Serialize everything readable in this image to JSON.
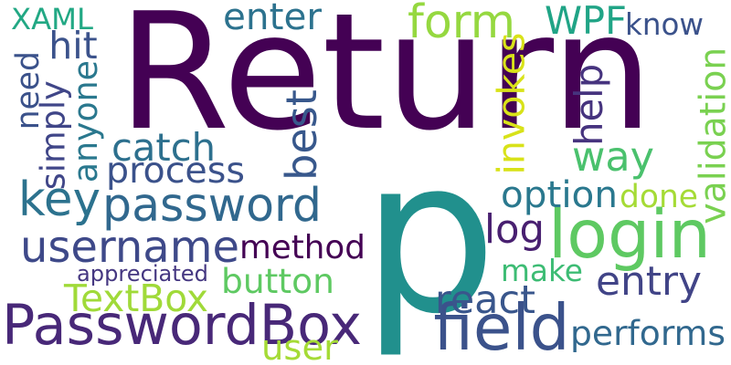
{
  "words": [
    {
      "text": "Return",
      "color": "#440154"
    },
    {
      "text": "p",
      "color": "#21908d"
    },
    {
      "text": "PasswordBox",
      "color": "#482878"
    },
    {
      "text": "login",
      "color": "#5ec962"
    },
    {
      "text": "field",
      "color": "#3b528b"
    },
    {
      "text": "password",
      "color": "#31688e"
    },
    {
      "text": "username",
      "color": "#3e4989"
    },
    {
      "text": "key",
      "color": "#2c728e"
    },
    {
      "text": "way",
      "color": "#4ac16d"
    },
    {
      "text": "WPF",
      "color": "#20a486"
    },
    {
      "text": "method",
      "color": "#440154"
    },
    {
      "text": "validation",
      "color": "#7ad151"
    },
    {
      "text": "form",
      "color": "#95d840"
    },
    {
      "text": "button",
      "color": "#5ec962"
    },
    {
      "text": "TextBox",
      "color": "#a0da39"
    },
    {
      "text": "react",
      "color": "#39568c"
    },
    {
      "text": "performs",
      "color": "#31688e"
    },
    {
      "text": "invokes",
      "color": "#d8e219"
    },
    {
      "text": "entry",
      "color": "#414487"
    },
    {
      "text": "catch",
      "color": "#2d708e"
    },
    {
      "text": "process",
      "color": "#3b528b"
    },
    {
      "text": "best",
      "color": "#38588c"
    },
    {
      "text": "option",
      "color": "#2a788e"
    },
    {
      "text": "user",
      "color": "#a5db36"
    },
    {
      "text": "XAML",
      "color": "#22a884"
    },
    {
      "text": "enter",
      "color": "#2c728e"
    },
    {
      "text": "log",
      "color": "#481f70"
    },
    {
      "text": "know",
      "color": "#3b528b"
    },
    {
      "text": "make",
      "color": "#3dbc74"
    },
    {
      "text": "hit",
      "color": "#3b528b"
    },
    {
      "text": "help",
      "color": "#46337e"
    },
    {
      "text": "done",
      "color": "#a5db36"
    },
    {
      "text": "need",
      "color": "#3b528b"
    },
    {
      "text": "anyone",
      "color": "#2a788e"
    },
    {
      "text": "simply",
      "color": "#404688"
    },
    {
      "text": "appreciated",
      "color": "#453781"
    }
  ]
}
